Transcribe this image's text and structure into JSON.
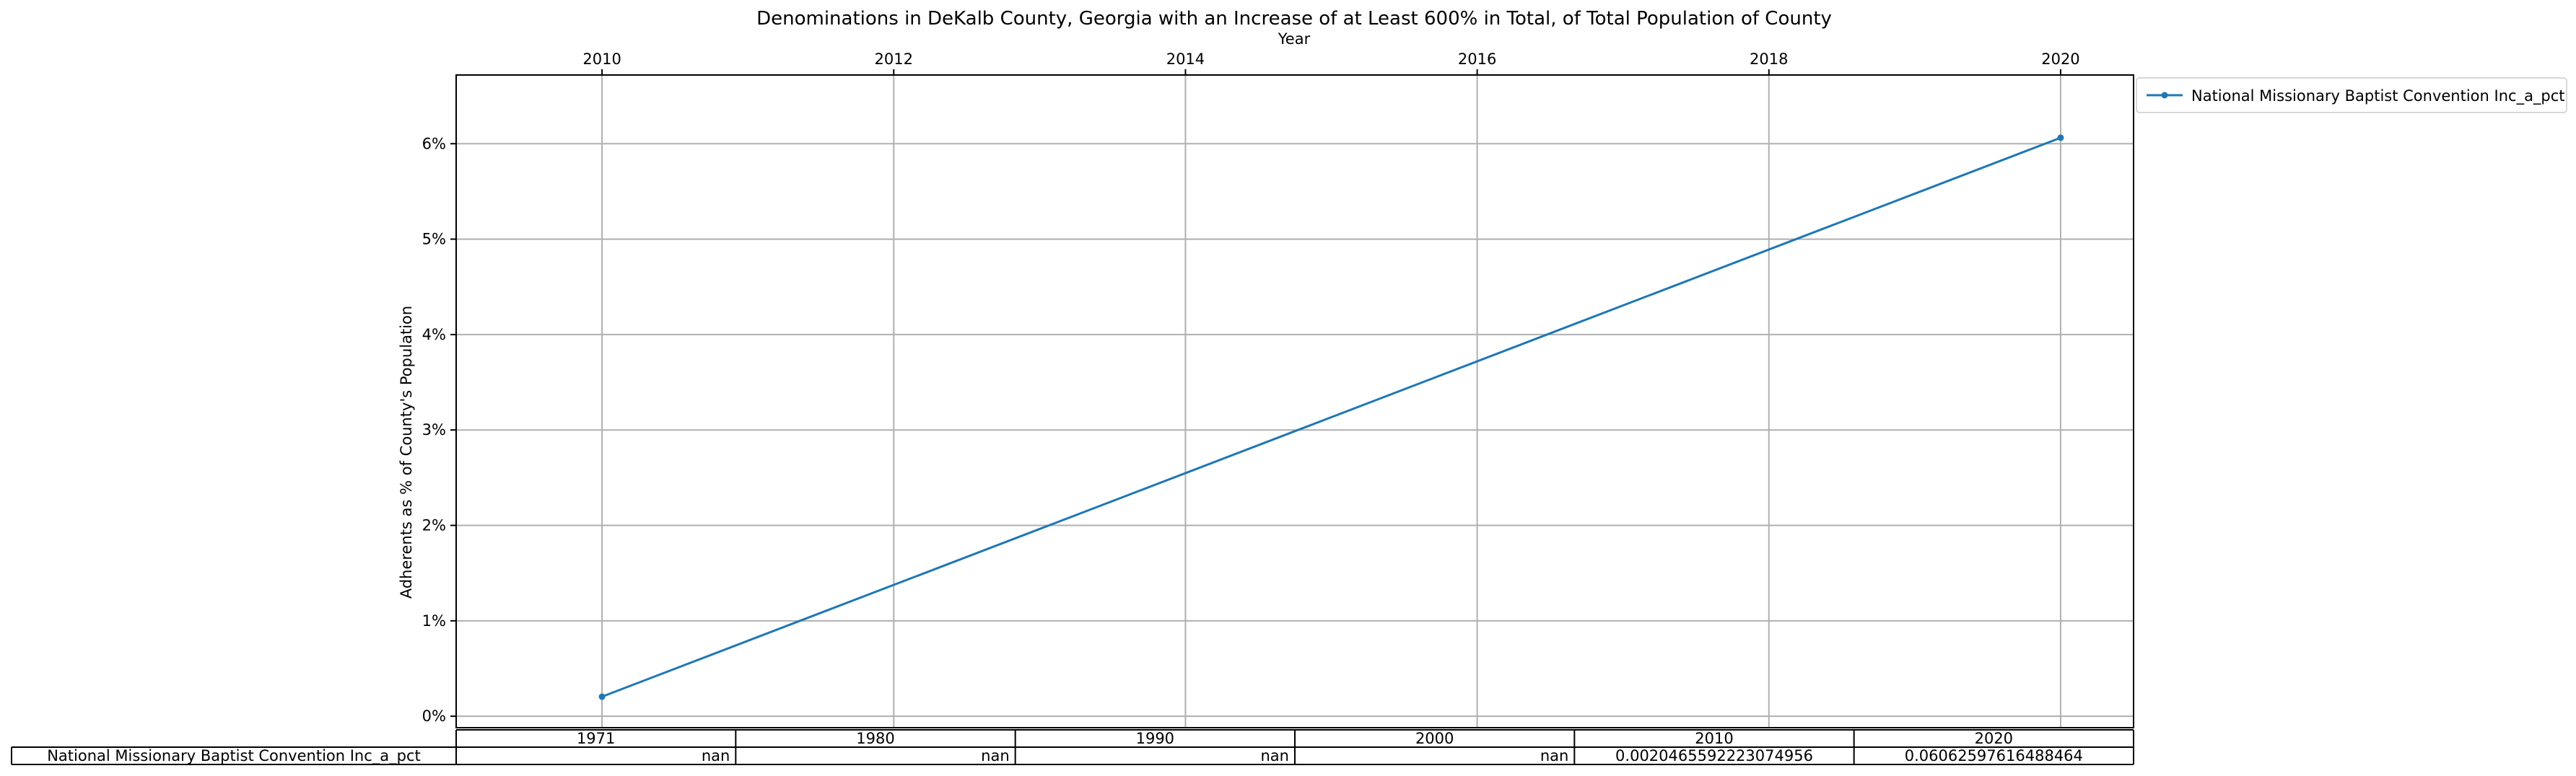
{
  "chart_data": {
    "type": "line",
    "title": "Denominations in DeKalb County, Georgia with an Increase of at Least 600% in Total, of Total Population of County",
    "xlabel": "Year",
    "ylabel": "Adherents as % of County's Population",
    "x": [
      2010,
      2020
    ],
    "xlim": [
      2009.0,
      2020.5
    ],
    "x_ticks": [
      "2010",
      "2012",
      "2014",
      "2016",
      "2018",
      "2020"
    ],
    "x_axis_position": "top",
    "ylim": [
      -0.0012,
      0.0672
    ],
    "y_ticks": [
      "0%",
      "1%",
      "2%",
      "3%",
      "4%",
      "5%",
      "6%"
    ],
    "grid": true,
    "legend_position": "outside-top-right",
    "series": [
      {
        "name": "National Missionary Baptist Convention Inc_a_pct",
        "x": [
          2010,
          2020
        ],
        "values": [
          0.0020465592223074956,
          0.06062597616488464
        ],
        "color": "#1f77b4"
      }
    ],
    "table": {
      "columns": [
        "1971",
        "1980",
        "1990",
        "2000",
        "2010",
        "2020"
      ],
      "rows": [
        {
          "label": "National Missionary Baptist Convention Inc_a_pct",
          "cells": [
            "nan",
            "nan",
            "nan",
            "nan",
            "0.0020465592223074956",
            "0.06062597616488464"
          ]
        }
      ]
    }
  }
}
